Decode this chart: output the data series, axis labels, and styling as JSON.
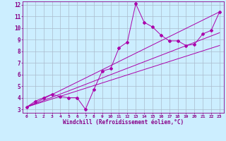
{
  "xlabel": "Windchill (Refroidissement éolien,°C)",
  "bg_color": "#cceeff",
  "line_color": "#aa00aa",
  "grid_color": "#aabbcc",
  "xlim": [
    -0.5,
    23.5
  ],
  "ylim": [
    2.7,
    12.3
  ],
  "xticks": [
    0,
    1,
    2,
    3,
    4,
    5,
    6,
    7,
    8,
    9,
    10,
    11,
    12,
    13,
    14,
    15,
    16,
    17,
    18,
    19,
    20,
    21,
    22,
    23
  ],
  "yticks": [
    3,
    4,
    5,
    6,
    7,
    8,
    9,
    10,
    11,
    12
  ],
  "series1_x": [
    0,
    1,
    2,
    3,
    4,
    5,
    6,
    7,
    8,
    9,
    10,
    11,
    12,
    13,
    14,
    15,
    16,
    17,
    18,
    19,
    20,
    21,
    22,
    23
  ],
  "series1_y": [
    3.2,
    3.7,
    4.0,
    4.3,
    4.1,
    4.0,
    4.0,
    3.0,
    4.7,
    6.3,
    6.5,
    8.3,
    8.8,
    12.1,
    10.5,
    10.1,
    9.4,
    8.9,
    8.9,
    8.5,
    8.6,
    9.5,
    9.8,
    11.4
  ],
  "trend1_x": [
    0,
    23
  ],
  "trend1_y": [
    3.2,
    8.5
  ],
  "trend2_x": [
    0,
    23
  ],
  "trend2_y": [
    3.2,
    9.6
  ],
  "trend3_x": [
    0,
    23
  ],
  "trend3_y": [
    3.2,
    11.4
  ]
}
